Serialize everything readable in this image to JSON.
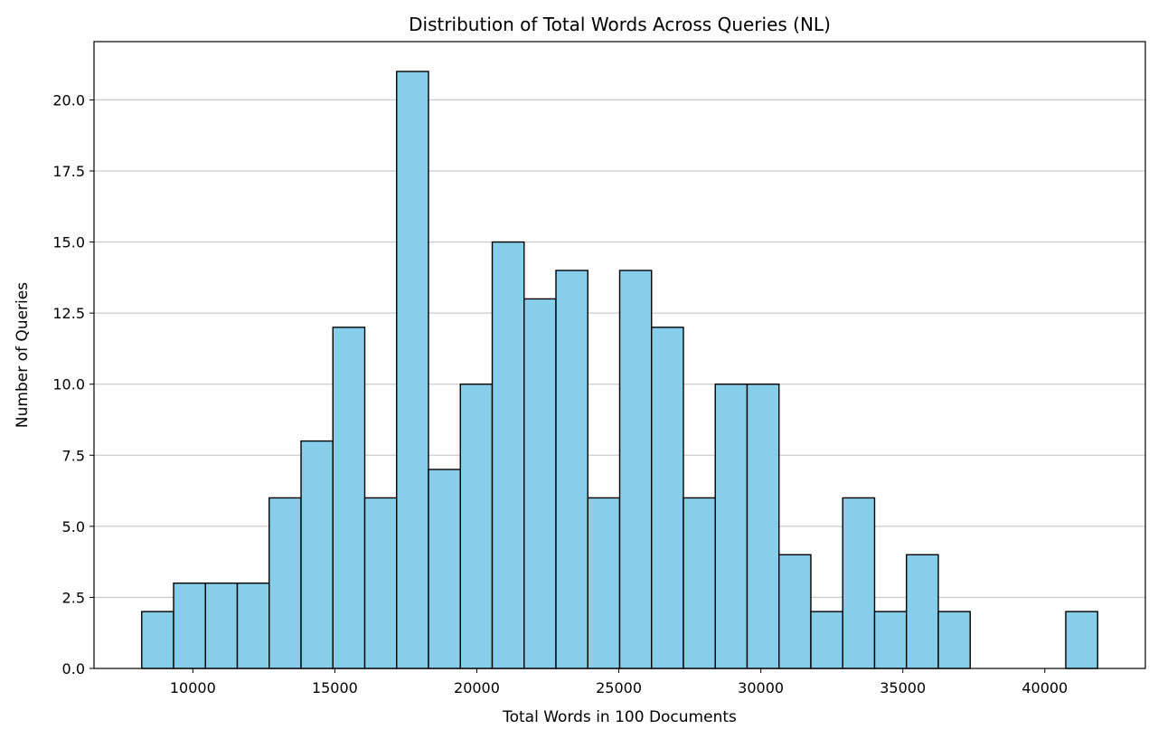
{
  "chart_data": {
    "type": "bar",
    "subtype": "histogram",
    "title": "Distribution of Total Words Across Queries (NL)",
    "xlabel": "Total Words in 100 Documents",
    "ylabel": "Number of Queries",
    "bins": {
      "start": 8200,
      "width": 1122,
      "counts": [
        2,
        3,
        3,
        3,
        6,
        8,
        12,
        6,
        21,
        7,
        10,
        15,
        13,
        14,
        6,
        14,
        12,
        6,
        10,
        10,
        4,
        2,
        6,
        2,
        4,
        2,
        0,
        0,
        0,
        2
      ]
    },
    "xlim": [
      6520,
      43540
    ],
    "ylim": [
      0,
      22.05
    ],
    "xticks": [
      10000,
      15000,
      20000,
      25000,
      30000,
      35000,
      40000
    ],
    "yticks": [
      0.0,
      2.5,
      5.0,
      7.5,
      10.0,
      12.5,
      15.0,
      17.5,
      20.0
    ],
    "ytick_labels": [
      "0.0",
      "2.5",
      "5.0",
      "7.5",
      "10.0",
      "12.5",
      "15.0",
      "17.5",
      "20.0"
    ],
    "grid": "y",
    "bar_color": "#87ceeb",
    "edge_color": "#000000",
    "grid_color": "#cccccc"
  }
}
